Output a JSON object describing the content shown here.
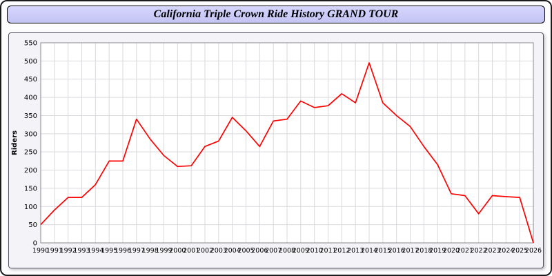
{
  "header": {
    "title": "California Triple Crown Ride History GRAND TOUR"
  },
  "chart_data": {
    "type": "line",
    "title": "California Triple Crown Ride History GRAND TOUR",
    "xlabel": "",
    "ylabel": "Riders",
    "ylim": [
      0,
      550
    ],
    "ytick_step": 50,
    "grid": true,
    "legend_position": "none",
    "line_color": "#ff0000",
    "x": [
      1990,
      1991,
      1992,
      1993,
      1994,
      1995,
      1996,
      1997,
      1998,
      1999,
      2000,
      2001,
      2002,
      2003,
      2004,
      2005,
      2006,
      2007,
      2008,
      2009,
      2010,
      2011,
      2012,
      2013,
      2014,
      2015,
      2016,
      2017,
      2018,
      2019,
      2020,
      2021,
      2022,
      2023,
      2024,
      2025,
      2026
    ],
    "series": [
      {
        "name": "Riders",
        "color": "#ff0000",
        "values": [
          50,
          90,
          125,
          125,
          160,
          225,
          225,
          340,
          285,
          240,
          210,
          212,
          265,
          280,
          345,
          308,
          265,
          335,
          340,
          390,
          372,
          377,
          410,
          385,
          495,
          385,
          350,
          320,
          265,
          215,
          135,
          130,
          80,
          130,
          127,
          125,
          0
        ]
      }
    ]
  }
}
